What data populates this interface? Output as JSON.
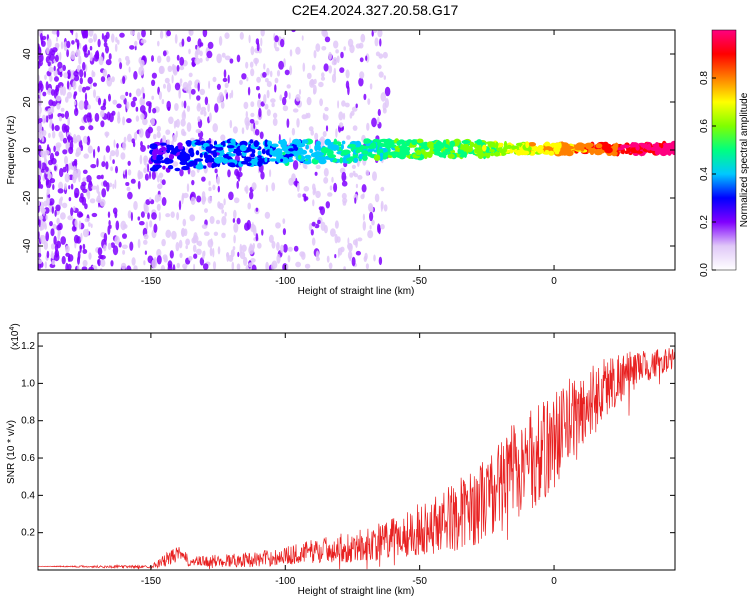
{
  "page_title": "C2E4.2024.327.20.58.G17",
  "colors": {
    "snr_line": "#e82020",
    "axis": "#000000"
  },
  "chart_data": [
    {
      "type": "heatmap",
      "name": "spectrogram",
      "xlabel": "Height of straight line (km)",
      "ylabel": "Frequency (Hz)",
      "xlim": [
        -192,
        45
      ],
      "ylim": [
        -50,
        50
      ],
      "x_ticks": [
        -150,
        -100,
        -50,
        0
      ],
      "x_tick_labels": [
        "-150",
        "-100",
        "-50",
        "0"
      ],
      "y_ticks": [
        -40,
        -20,
        0,
        20,
        40
      ],
      "y_tick_labels": [
        "-40",
        "-20",
        "0",
        "20",
        "40"
      ],
      "colorbar": {
        "label": "Normalized spectral amplitude",
        "range": [
          0,
          1
        ],
        "ticks": [
          0.0,
          0.2,
          0.4,
          0.6,
          0.8
        ],
        "tick_labels": [
          "0.0",
          "0.2",
          "0.4",
          "0.6",
          "0.8"
        ],
        "colormap": [
          "#ffffff",
          "#e0c8f8",
          "#8000ff",
          "#0000ff",
          "#00c8ff",
          "#00ff80",
          "#80ff00",
          "#ffff00",
          "#ff8000",
          "#ff0000",
          "#ff0080"
        ]
      },
      "tone_center_hz": [
        [
          -145,
          -3
        ],
        [
          -130,
          -2
        ],
        [
          -110,
          -1
        ],
        [
          -90,
          -1
        ],
        [
          -70,
          0
        ],
        [
          -50,
          0.5
        ],
        [
          -30,
          0.5
        ],
        [
          -15,
          0.5
        ],
        [
          0,
          0.5
        ],
        [
          10,
          0.5
        ],
        [
          20,
          0.5
        ],
        [
          45,
          0.5
        ]
      ]
    },
    {
      "type": "line",
      "name": "snr",
      "xlabel": "Height of straight line (km)",
      "ylabel": "SNR (10 * v/v)",
      "y_multiplier_label": "(x10",
      "y_multiplier_exp": "4",
      "y_multiplier_close": ")",
      "xlim": [
        -192,
        45
      ],
      "ylim": [
        0,
        1.27
      ],
      "x_ticks": [
        -150,
        -100,
        -50,
        0
      ],
      "x_tick_labels": [
        "-150",
        "-100",
        "-50",
        "0"
      ],
      "y_ticks": [
        0.2,
        0.4,
        0.6,
        0.8,
        1.0,
        1.2
      ],
      "y_tick_labels": [
        "0.2",
        "0.4",
        "0.6",
        "0.8",
        "1.0",
        "1.2"
      ],
      "series": [
        {
          "x": [
            -192,
            -170,
            -150,
            -145,
            -140,
            -135,
            -125,
            -110,
            -100,
            -90,
            -80,
            -70,
            -60,
            -50,
            -40,
            -30,
            -20,
            -15,
            -10,
            -5,
            0,
            5,
            10,
            15,
            20,
            25,
            30,
            35,
            40,
            45
          ],
          "y": [
            0.02,
            0.02,
            0.02,
            0.06,
            0.1,
            0.05,
            0.06,
            0.07,
            0.09,
            0.12,
            0.14,
            0.16,
            0.2,
            0.26,
            0.32,
            0.4,
            0.52,
            0.62,
            0.66,
            0.7,
            0.78,
            0.86,
            0.9,
            0.98,
            1.04,
            1.08,
            1.1,
            1.12,
            1.14,
            1.15
          ],
          "noise": [
            0.0,
            0.01,
            0.01,
            0.05,
            0.06,
            0.04,
            0.05,
            0.06,
            0.07,
            0.09,
            0.11,
            0.13,
            0.16,
            0.2,
            0.25,
            0.3,
            0.35,
            0.4,
            0.4,
            0.4,
            0.38,
            0.36,
            0.32,
            0.28,
            0.24,
            0.2,
            0.15,
            0.12,
            0.1,
            0.08
          ]
        }
      ]
    }
  ]
}
